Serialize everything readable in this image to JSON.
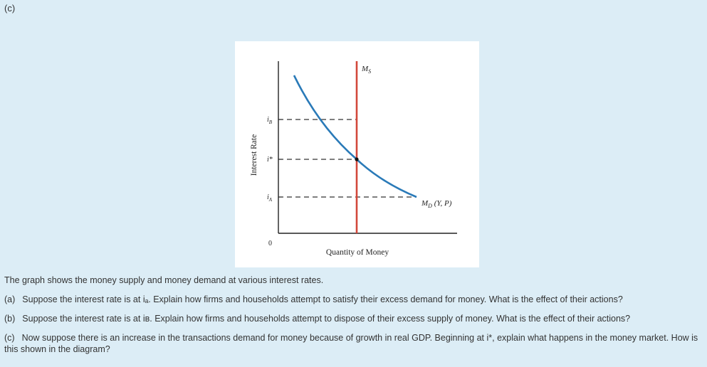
{
  "part_label": "(c)",
  "diagram": {
    "y_axis_label": "Interest Rate",
    "x_axis_label": "Quantity of Money",
    "origin_label": "0",
    "ms_label_main": "M",
    "ms_label_sub": "S",
    "md_label_main": "M",
    "md_label_sub": "D",
    "md_label_args": " (Y, P)",
    "rate_labels": {
      "iB_main": "i",
      "iB_sub": "B",
      "istar": "i*",
      "iA_main": "i",
      "iA_sub": "A"
    },
    "colors": {
      "demand_curve": "#2a7ab8",
      "supply_line": "#d2473a",
      "axes": "#222222",
      "dashed": "#333333"
    }
  },
  "text": {
    "intro": "The graph shows the money supply and money demand at various interest rates.",
    "questions": [
      {
        "label": "(a)",
        "text": "Suppose the interest rate is at iₐ. Explain how firms and households attempt to satisfy their excess demand for money. What is the effect of their actions?"
      },
      {
        "label": "(b)",
        "text": "Suppose the interest rate is at iʙ. Explain how firms and households attempt to dispose of their excess supply of money. What is the effect of their actions?"
      },
      {
        "label": "(c)",
        "text": "Now suppose there is an increase in the transactions demand for money because of growth in real GDP. Beginning at i*, explain what happens in the money market. How is this shown in the diagram?"
      }
    ]
  }
}
